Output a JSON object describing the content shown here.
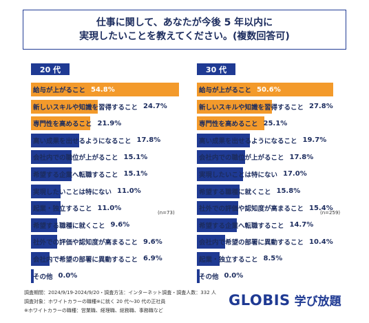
{
  "title": {
    "line1": "仕事に関して、あなたが今後 5 年以内に",
    "line2": "実現したいことを教えてください。(複数回答可)"
  },
  "colors": {
    "accent_blue": "#1f3a93",
    "accent_orange": "#f39a2b"
  },
  "chart_data": [
    {
      "type": "bar",
      "orientation": "horizontal",
      "group_label": "20 代",
      "n_label": "(n=73)",
      "xlim": [
        0,
        60
      ],
      "highlight_count": 3,
      "items": [
        {
          "label": "給与が上がること",
          "value": 54.8,
          "value_label": "54.8%"
        },
        {
          "label": "新しいスキルや知識を習得すること",
          "value": 24.7,
          "value_label": "24.7%"
        },
        {
          "label": "専門性を高めること",
          "value": 21.9,
          "value_label": "21.9%"
        },
        {
          "label": "高い成果を出せるようになること",
          "value": 17.8,
          "value_label": "17.8%"
        },
        {
          "label": "会社内での職位が上がること",
          "value": 15.1,
          "value_label": "15.1%"
        },
        {
          "label": "希望する企業へ転職すること",
          "value": 15.1,
          "value_label": "15.1%"
        },
        {
          "label": "実現したいことは特にない",
          "value": 11.0,
          "value_label": "11.0%"
        },
        {
          "label": "起業・独立すること",
          "value": 11.0,
          "value_label": "11.0%"
        },
        {
          "label": "希望する職種に就くこと",
          "value": 9.6,
          "value_label": "9.6%"
        },
        {
          "label": "社外での評価や認知度が高まること",
          "value": 9.6,
          "value_label": "9.6%"
        },
        {
          "label": "会社内で希望の部署に異動すること",
          "value": 6.9,
          "value_label": "6.9%"
        },
        {
          "label": "その他",
          "value": 0.0,
          "value_label": "0.0%"
        }
      ]
    },
    {
      "type": "bar",
      "orientation": "horizontal",
      "group_label": "30 代",
      "n_label": "(n=259)",
      "xlim": [
        0,
        60
      ],
      "highlight_count": 3,
      "items": [
        {
          "label": "給与が上がること",
          "value": 50.6,
          "value_label": "50.6%"
        },
        {
          "label": "新しいスキルや知識を習得すること",
          "value": 27.8,
          "value_label": "27.8%"
        },
        {
          "label": "専門性を高めること",
          "value": 25.1,
          "value_label": "25.1%"
        },
        {
          "label": "高い成果を出せるようになること",
          "value": 19.7,
          "value_label": "19.7%"
        },
        {
          "label": "会社内での職位が上がること",
          "value": 17.8,
          "value_label": "17.8%"
        },
        {
          "label": "実現したいことは特にない",
          "value": 17.0,
          "value_label": "17.0%"
        },
        {
          "label": "希望する職種に就くこと",
          "value": 15.8,
          "value_label": "15.8%"
        },
        {
          "label": "社外での評価や認知度が高まること",
          "value": 15.4,
          "value_label": "15.4%"
        },
        {
          "label": "希望する企業へ転職すること",
          "value": 14.7,
          "value_label": "14.7%"
        },
        {
          "label": "会社内で希望の部署に異動すること",
          "value": 10.4,
          "value_label": "10.4%"
        },
        {
          "label": "起業・独立すること",
          "value": 8.5,
          "value_label": "8.5%"
        },
        {
          "label": "その他",
          "value": 0.0,
          "value_label": "0.0%"
        }
      ]
    }
  ],
  "footer": {
    "line1": "調査期間：2024/9/19-2024/9/20・調査方法：インターネット調査・調査人数：332 人",
    "line2": "調査対象：ホワイトカラーの職種※に就く 20 代〜30 代の正社員",
    "line3": "※ホワイトカラーの職種：営業職、経理職、総務職、事務職など"
  },
  "logo": {
    "brand": "GLOBIS",
    "sub": "学び放題"
  }
}
